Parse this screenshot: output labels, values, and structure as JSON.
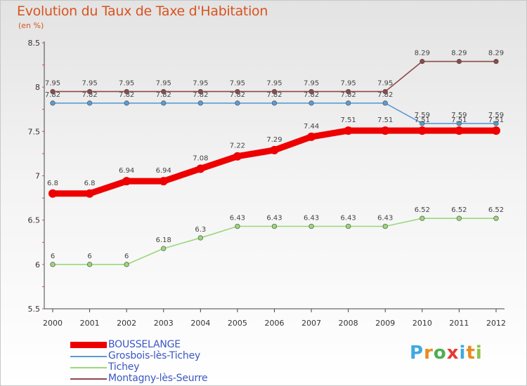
{
  "title": "Evolution du Taux de Taxe d'Habitation",
  "subtitle": "(en %)",
  "chart_data": {
    "type": "line",
    "title": "Evolution du Taux de Taxe d'Habitation",
    "ylabel": "(en %)",
    "xlabel": "",
    "x": [
      "2000",
      "2001",
      "2002",
      "2003",
      "2004",
      "2005",
      "2006",
      "2007",
      "2008",
      "2009",
      "2010",
      "2011",
      "2012"
    ],
    "ylim": [
      5.5,
      8.5
    ],
    "yticks": [
      "5.5",
      "6",
      "6.5",
      "7",
      "7.5",
      "8",
      "8.5"
    ],
    "legend_position": "bottom-left",
    "series": [
      {
        "name": "BOUSSELANGE",
        "color": "#ee0000",
        "width": "thick",
        "values": [
          6.8,
          6.8,
          6.94,
          6.94,
          7.08,
          7.22,
          7.29,
          7.44,
          7.51,
          7.51,
          7.51,
          7.51,
          7.51
        ]
      },
      {
        "name": "Grosbois-lès-Tichey",
        "color": "#5b9bd5",
        "width": "thin",
        "values": [
          7.82,
          7.82,
          7.82,
          7.82,
          7.82,
          7.82,
          7.82,
          7.82,
          7.82,
          7.82,
          7.59,
          7.59,
          7.59
        ]
      },
      {
        "name": "Tichey",
        "color": "#9bd77a",
        "width": "thin",
        "values": [
          6,
          6,
          6,
          6.18,
          6.3,
          6.43,
          6.43,
          6.43,
          6.43,
          6.43,
          6.52,
          6.52,
          6.52
        ]
      },
      {
        "name": "Montagny-lès-Seurre",
        "color": "#8b4a4a",
        "width": "thin",
        "values": [
          7.95,
          7.95,
          7.95,
          7.95,
          7.95,
          7.95,
          7.95,
          7.95,
          7.95,
          7.95,
          8.29,
          8.29,
          8.29
        ]
      }
    ]
  },
  "logo": {
    "letters": [
      "P",
      "r",
      "o",
      "x",
      "i",
      "t",
      "i"
    ],
    "colors": [
      "#3fa9e0",
      "#e88b1e",
      "#4caf50",
      "#e53935",
      "#3fa9e0",
      "#e88b1e",
      "#8bc34a"
    ]
  }
}
